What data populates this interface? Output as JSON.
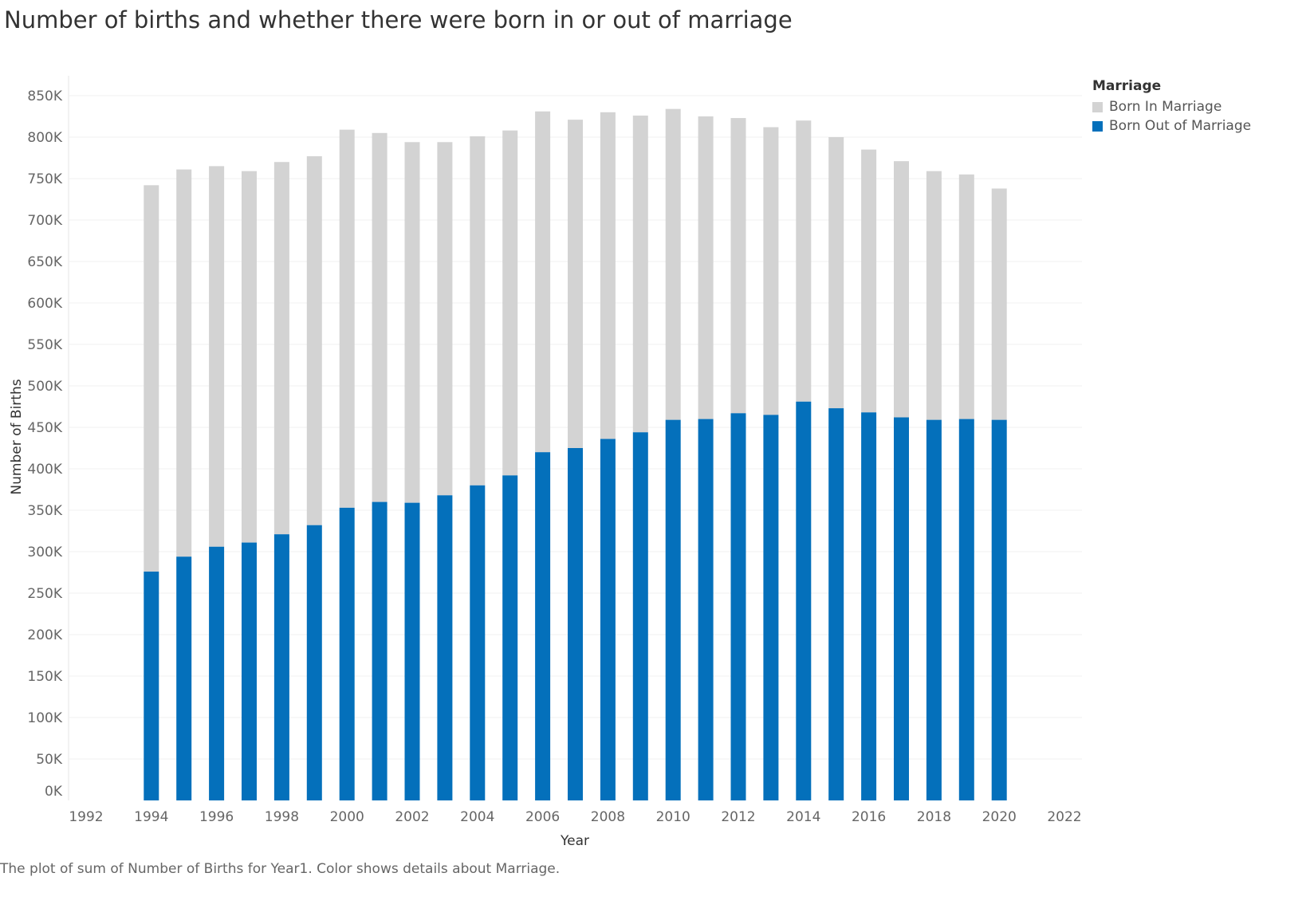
{
  "title": "Number of births and whether there were born in or out of marriage",
  "caption": "The plot of sum of Number of Births for Year1.  Color shows details about Marriage.",
  "legend": {
    "title": "Marriage",
    "items": [
      {
        "label": "Born In Marriage",
        "color": "#d3d3d3"
      },
      {
        "label": "Born Out of Marriage",
        "color": "#0470bb"
      }
    ]
  },
  "chart_data": {
    "type": "bar",
    "stacked": true,
    "title": "Number of births and whether there were born in or out of marriage",
    "xlabel": "Year",
    "ylabel": "Number of Births",
    "xlim": [
      1992,
      2022
    ],
    "x_ticks": [
      1992,
      1994,
      1996,
      1998,
      2000,
      2002,
      2004,
      2006,
      2008,
      2010,
      2012,
      2014,
      2016,
      2018,
      2020,
      2022
    ],
    "ylim": [
      0,
      850000
    ],
    "y_ticks": [
      0,
      50000,
      100000,
      150000,
      200000,
      250000,
      300000,
      350000,
      400000,
      450000,
      500000,
      550000,
      600000,
      650000,
      700000,
      750000,
      800000,
      850000
    ],
    "y_tick_labels": [
      "0K",
      "50K",
      "100K",
      "150K",
      "200K",
      "250K",
      "300K",
      "350K",
      "400K",
      "450K",
      "500K",
      "550K",
      "600K",
      "650K",
      "700K",
      "750K",
      "800K",
      "850K"
    ],
    "grid": true,
    "legend_position": "top-right",
    "x": [
      1994,
      1995,
      1996,
      1997,
      1998,
      1999,
      2000,
      2001,
      2002,
      2003,
      2004,
      2005,
      2006,
      2007,
      2008,
      2009,
      2010,
      2011,
      2012,
      2013,
      2014,
      2015,
      2016,
      2017,
      2018,
      2019,
      2020
    ],
    "series": [
      {
        "name": "Born Out of Marriage",
        "color": "#0470bb",
        "values": [
          276000,
          294000,
          306000,
          311000,
          321000,
          332000,
          353000,
          360000,
          359000,
          368000,
          380000,
          392000,
          420000,
          425000,
          436000,
          444000,
          459000,
          460000,
          467000,
          465000,
          481000,
          473000,
          468000,
          462000,
          459000,
          460000,
          459000
        ]
      },
      {
        "name": "Born In Marriage",
        "color": "#d3d3d3",
        "values": [
          466000,
          467000,
          459000,
          448000,
          449000,
          445000,
          456000,
          445000,
          435000,
          426000,
          421000,
          416000,
          411000,
          396000,
          394000,
          382000,
          375000,
          365000,
          356000,
          347000,
          339000,
          327000,
          317000,
          309000,
          300000,
          295000,
          279000
        ]
      }
    ]
  }
}
